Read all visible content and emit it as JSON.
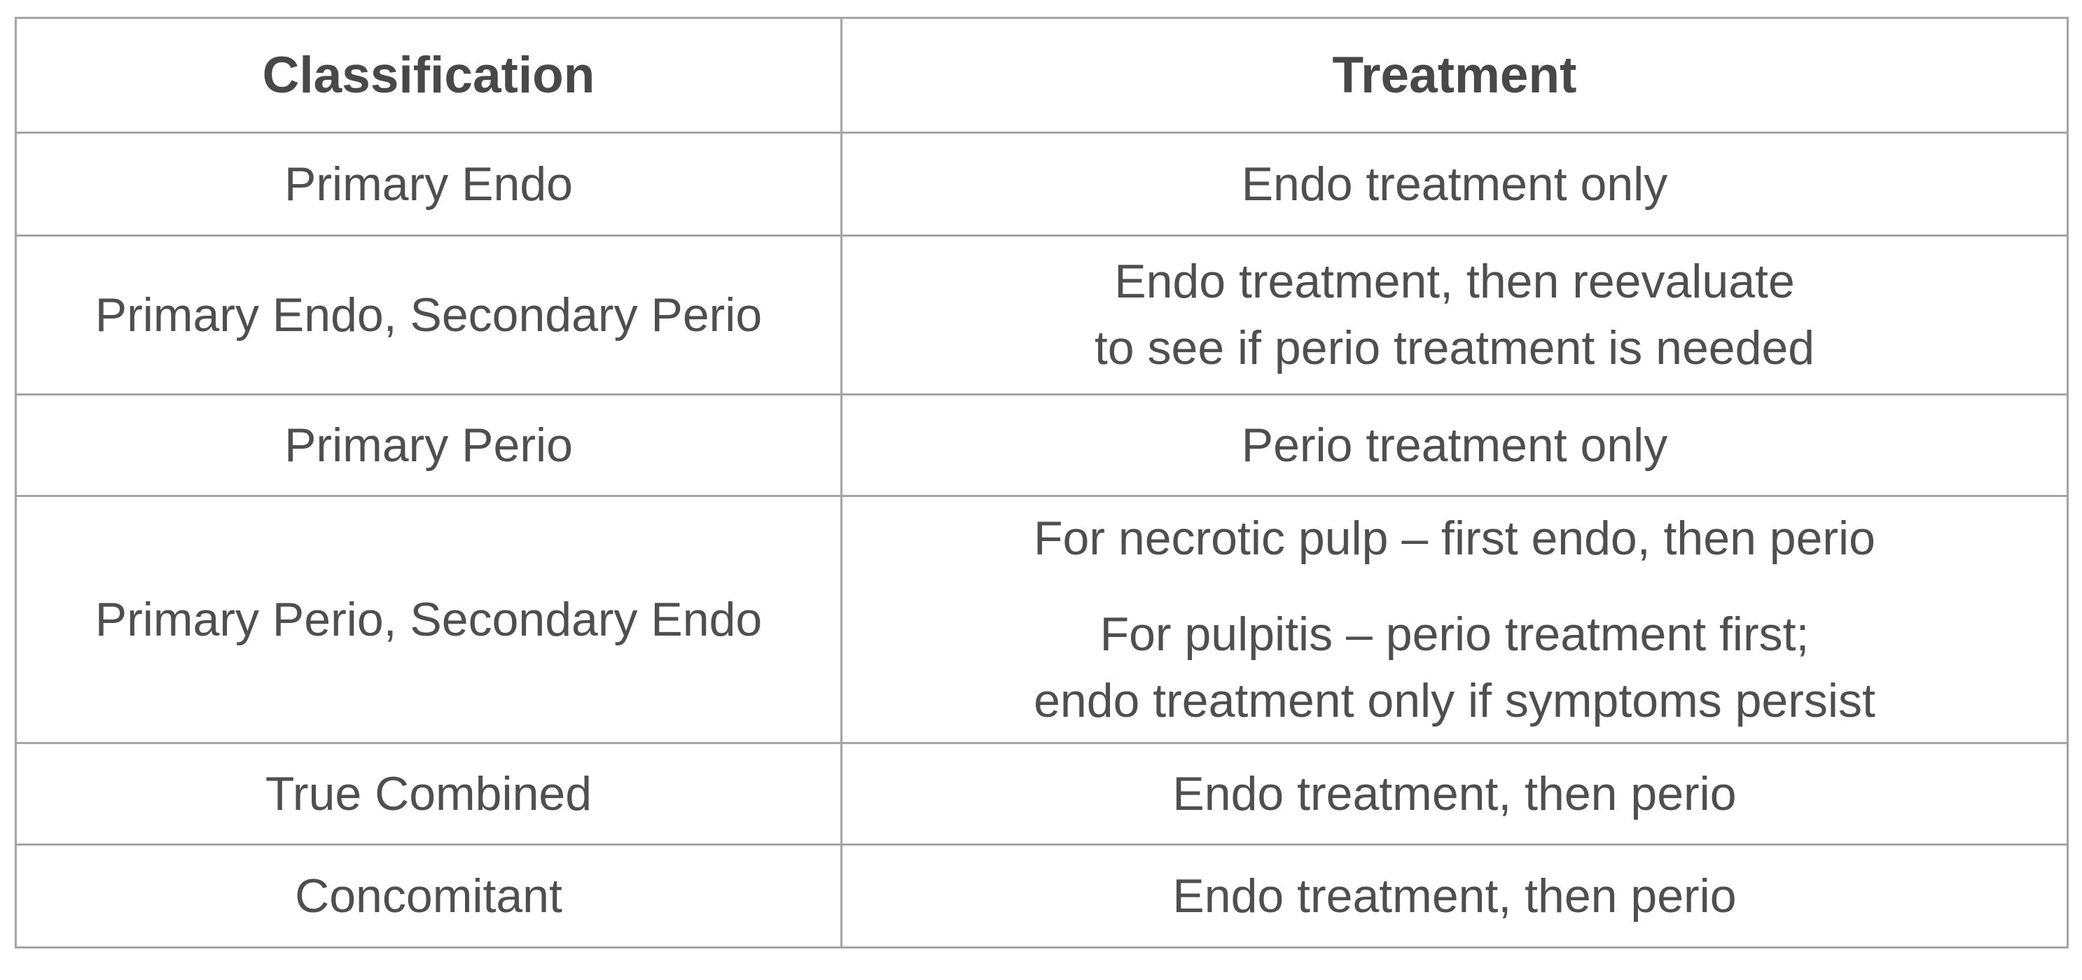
{
  "table": {
    "columns": [
      "Classification",
      "Treatment"
    ],
    "rows": [
      {
        "classification": "Primary Endo",
        "treatment": [
          "Endo treatment only"
        ]
      },
      {
        "classification": "Primary Endo, Secondary Perio",
        "treatment": [
          "Endo treatment, then reevaluate\nto see if perio treatment is needed"
        ]
      },
      {
        "classification": "Primary Perio",
        "treatment": [
          "Perio treatment only"
        ]
      },
      {
        "classification": "Primary Perio, Secondary Endo",
        "treatment": [
          "For necrotic pulp – first endo, then perio",
          "For pulpitis – perio treatment first;\nendo treatment only if symptoms persist"
        ]
      },
      {
        "classification": "True Combined",
        "treatment": [
          "Endo treatment, then perio"
        ]
      },
      {
        "classification": "Concomitant",
        "treatment": [
          "Endo treatment, then perio"
        ]
      }
    ],
    "colors": {
      "border": "#a5a5a5",
      "text": "#4f4f4f",
      "header_text": "#484848",
      "background": "#ffffff"
    }
  }
}
